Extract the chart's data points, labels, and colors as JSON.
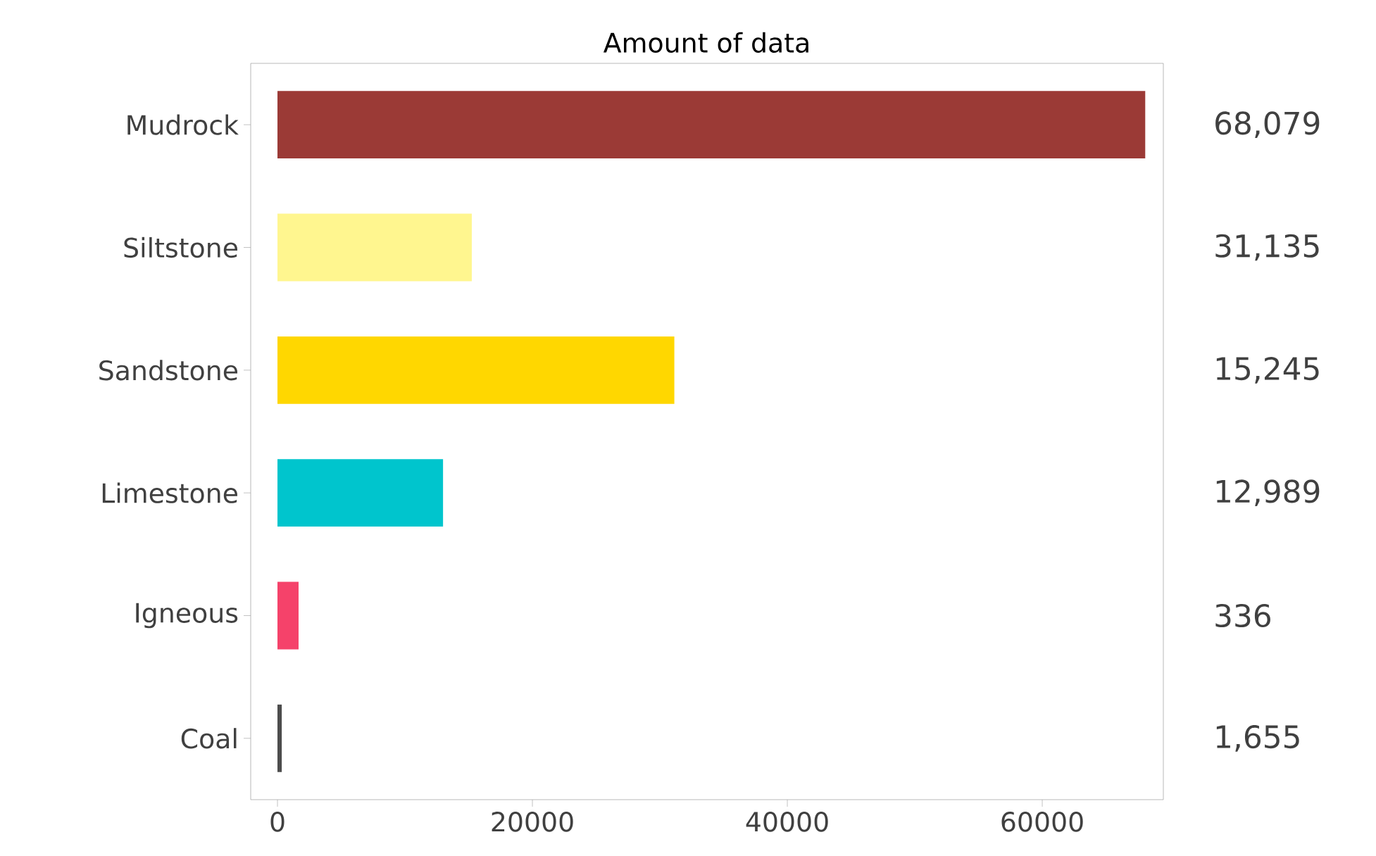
{
  "chart_data": {
    "type": "bar",
    "orientation": "horizontal",
    "title": "Amount of data",
    "categories": [
      "Mudrock",
      "Siltstone",
      "Sandstone",
      "Limestone",
      "Igneous",
      "Coal"
    ],
    "values": [
      68079,
      15245,
      31135,
      12989,
      1655,
      336
    ],
    "colors": [
      "#9b3a36",
      "#fff68f",
      "#ffd700",
      "#00c5cd",
      "#f5426a",
      "#4d4d4d"
    ],
    "xlim": [
      -2100,
      69500
    ],
    "xticks": [
      0,
      20000,
      40000,
      60000
    ],
    "annotations": [
      "68,079",
      "31,135",
      "15,245",
      "12,989",
      "336",
      "1,655"
    ]
  }
}
